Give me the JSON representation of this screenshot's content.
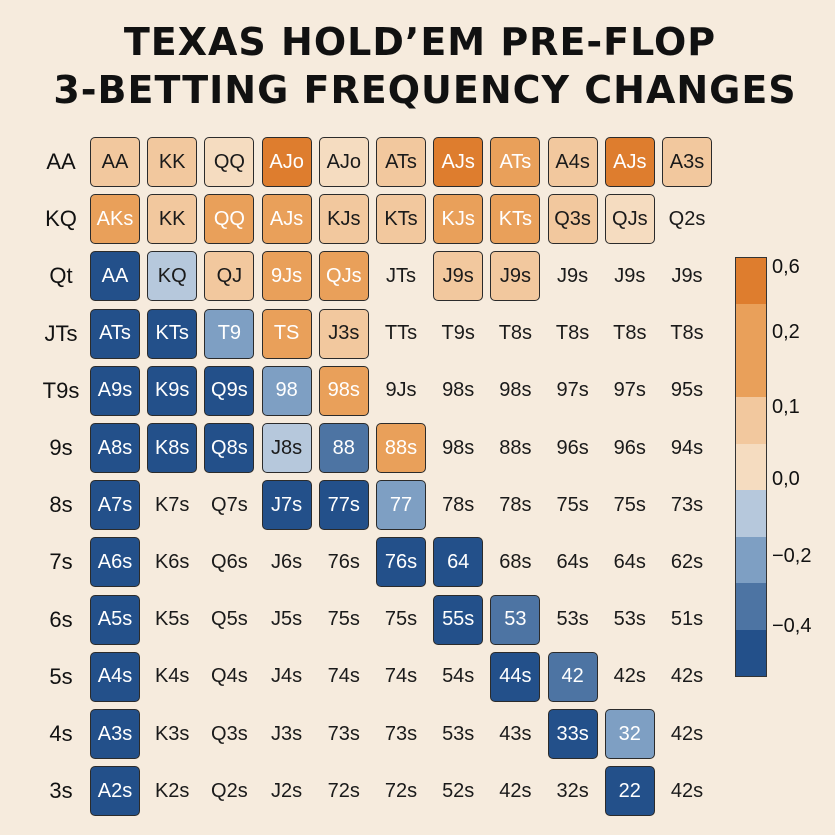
{
  "title_lines": [
    "TEXAS HOLD’EM PRE-FLOP",
    "3-BETTING FREQUENCY CHANGES"
  ],
  "colors": {
    "background": "#f6ebdd",
    "dark_orange": "#de7d2e",
    "orange": "#e9a05a",
    "light_orange": "#f2c89e",
    "pale_orange": "#f5dcc0",
    "pale_blue": "#b6c8dc",
    "light_blue": "#7e9fc3",
    "mid_blue": "#4d74a3",
    "dark_blue": "#23508a",
    "none": "transparent"
  },
  "chart_data": {
    "type": "heatmap",
    "title": "TEXAS HOLD’EM PRE-FLOP 3-BETTING FREQUENCY CHANGES",
    "row_labels": [
      "AA",
      "KQ",
      "Qt",
      "JTs",
      "T9s",
      "9s",
      "8s",
      "7s",
      "6s",
      "5s",
      "4s",
      "3s"
    ],
    "cells": [
      [
        [
          "AA",
          "light_orange"
        ],
        [
          "KK",
          "light_orange"
        ],
        [
          "QQ",
          "pale_orange"
        ],
        [
          "AJo",
          "dark_orange"
        ],
        [
          "AJo",
          "pale_orange"
        ],
        [
          "ATs",
          "light_orange"
        ],
        [
          "AJs",
          "dark_orange"
        ],
        [
          "ATs",
          "orange"
        ],
        [
          "A4s",
          "light_orange"
        ],
        [
          "AJs",
          "dark_orange"
        ],
        [
          "A3s",
          "light_orange"
        ]
      ],
      [
        [
          "AKs",
          "orange"
        ],
        [
          "KK",
          "light_orange"
        ],
        [
          "QQ",
          "orange"
        ],
        [
          "AJs",
          "orange"
        ],
        [
          "KJs",
          "light_orange"
        ],
        [
          "KTs",
          "light_orange"
        ],
        [
          "KJs",
          "orange"
        ],
        [
          "KTs",
          "orange"
        ],
        [
          "Q3s",
          "light_orange"
        ],
        [
          "QJs",
          "pale_orange"
        ],
        [
          "Q2s",
          "none"
        ]
      ],
      [
        [
          "AA",
          "dark_blue"
        ],
        [
          "KQ",
          "pale_blue"
        ],
        [
          "QJ",
          "light_orange"
        ],
        [
          "9Js",
          "orange"
        ],
        [
          "QJs",
          "orange"
        ],
        [
          "JTs",
          "none"
        ],
        [
          "J9s",
          "light_orange"
        ],
        [
          "J9s",
          "light_orange"
        ],
        [
          "J9s",
          "none"
        ],
        [
          "J9s",
          "none"
        ],
        [
          "J9s",
          "none"
        ]
      ],
      [
        [
          "ATs",
          "dark_blue"
        ],
        [
          "KTs",
          "dark_blue"
        ],
        [
          "T9",
          "light_blue"
        ],
        [
          "TS",
          "orange"
        ],
        [
          "J3s",
          "light_orange"
        ],
        [
          "TTs",
          "none"
        ],
        [
          "T9s",
          "none"
        ],
        [
          "T8s",
          "none"
        ],
        [
          "T8s",
          "none"
        ],
        [
          "T8s",
          "none"
        ],
        [
          "T8s",
          "none"
        ]
      ],
      [
        [
          "A9s",
          "dark_blue"
        ],
        [
          "K9s",
          "dark_blue"
        ],
        [
          "Q9s",
          "dark_blue"
        ],
        [
          "98",
          "light_blue"
        ],
        [
          "98s",
          "orange"
        ],
        [
          "9Js",
          "none"
        ],
        [
          "98s",
          "none"
        ],
        [
          "98s",
          "none"
        ],
        [
          "97s",
          "none"
        ],
        [
          "97s",
          "none"
        ],
        [
          "95s",
          "none"
        ]
      ],
      [
        [
          "A8s",
          "dark_blue"
        ],
        [
          "K8s",
          "dark_blue"
        ],
        [
          "Q8s",
          "dark_blue"
        ],
        [
          "J8s",
          "pale_blue"
        ],
        [
          "88",
          "mid_blue"
        ],
        [
          "88s",
          "orange"
        ],
        [
          "98s",
          "none"
        ],
        [
          "88s",
          "none"
        ],
        [
          "96s",
          "none"
        ],
        [
          "96s",
          "none"
        ],
        [
          "94s",
          "none"
        ]
      ],
      [
        [
          "A7s",
          "dark_blue"
        ],
        [
          "K7s",
          "none"
        ],
        [
          "Q7s",
          "none"
        ],
        [
          "J7s",
          "dark_blue"
        ],
        [
          "77s",
          "dark_blue"
        ],
        [
          "77",
          "light_blue"
        ],
        [
          "78s",
          "none"
        ],
        [
          "78s",
          "none"
        ],
        [
          "75s",
          "none"
        ],
        [
          "75s",
          "none"
        ],
        [
          "73s",
          "none"
        ]
      ],
      [
        [
          "A6s",
          "dark_blue"
        ],
        [
          "K6s",
          "none"
        ],
        [
          "Q6s",
          "none"
        ],
        [
          "J6s",
          "none"
        ],
        [
          "76s",
          "none"
        ],
        [
          "76s",
          "dark_blue"
        ],
        [
          "64",
          "dark_blue"
        ],
        [
          "68s",
          "none"
        ],
        [
          "64s",
          "none"
        ],
        [
          "64s",
          "none"
        ],
        [
          "62s",
          "none"
        ]
      ],
      [
        [
          "A5s",
          "dark_blue"
        ],
        [
          "K5s",
          "none"
        ],
        [
          "Q5s",
          "none"
        ],
        [
          "J5s",
          "none"
        ],
        [
          "75s",
          "none"
        ],
        [
          "75s",
          "none"
        ],
        [
          "55s",
          "dark_blue"
        ],
        [
          "53",
          "mid_blue"
        ],
        [
          "53s",
          "none"
        ],
        [
          "53s",
          "none"
        ],
        [
          "51s",
          "none"
        ]
      ],
      [
        [
          "A4s",
          "dark_blue"
        ],
        [
          "K4s",
          "none"
        ],
        [
          "Q4s",
          "none"
        ],
        [
          "J4s",
          "none"
        ],
        [
          "74s",
          "none"
        ],
        [
          "74s",
          "none"
        ],
        [
          "54s",
          "none"
        ],
        [
          "44s",
          "dark_blue"
        ],
        [
          "42",
          "mid_blue"
        ],
        [
          "42s",
          "none"
        ],
        [
          "42s",
          "none"
        ]
      ],
      [
        [
          "A3s",
          "dark_blue"
        ],
        [
          "K3s",
          "none"
        ],
        [
          "Q3s",
          "none"
        ],
        [
          "J3s",
          "none"
        ],
        [
          "73s",
          "none"
        ],
        [
          "73s",
          "none"
        ],
        [
          "53s",
          "none"
        ],
        [
          "43s",
          "none"
        ],
        [
          "33s",
          "dark_blue"
        ],
        [
          "32",
          "light_blue"
        ],
        [
          "42s",
          "none"
        ]
      ],
      [
        [
          "A2s",
          "dark_blue"
        ],
        [
          "K2s",
          "none"
        ],
        [
          "Q2s",
          "none"
        ],
        [
          "J2s",
          "none"
        ],
        [
          "72s",
          "none"
        ],
        [
          "72s",
          "none"
        ],
        [
          "52s",
          "none"
        ],
        [
          "42s",
          "none"
        ],
        [
          "32s",
          "none"
        ],
        [
          "22",
          "dark_blue"
        ],
        [
          "42s",
          "none"
        ]
      ]
    ],
    "colorbar": {
      "segments_top_to_bottom": [
        "dark_orange",
        "orange",
        "orange",
        "light_orange",
        "pale_orange",
        "pale_blue",
        "light_blue",
        "mid_blue",
        "dark_blue"
      ],
      "tick_labels": [
        "0,6",
        "0,2",
        "0,1",
        "0,0",
        "−0,2",
        "−0,4"
      ]
    }
  }
}
